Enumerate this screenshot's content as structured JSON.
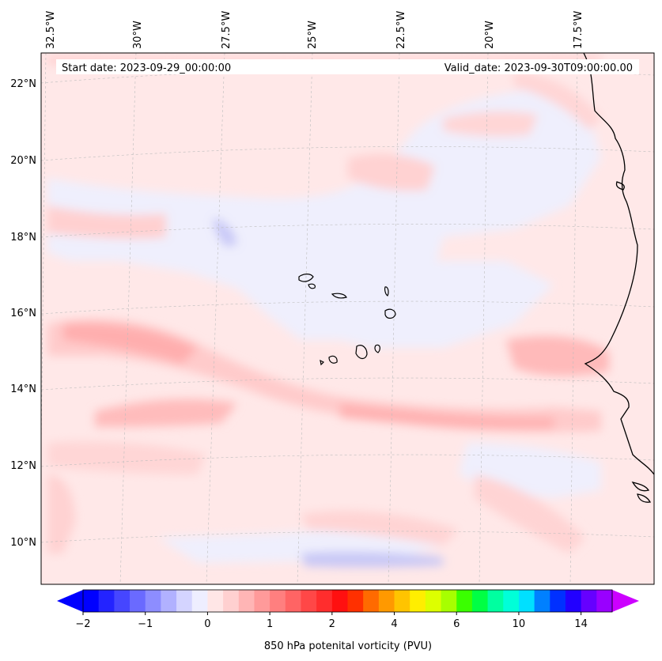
{
  "header": {
    "start_date": "Start date: 2023-09-29_00:00:00",
    "valid_date": "Valid_date: 2023-09-30T09:00:00.00"
  },
  "map": {
    "lon_labels": [
      "32.5°W",
      "30°W",
      "27.5°W",
      "25°W",
      "22.5°W",
      "20°W",
      "17.5°W"
    ],
    "lat_labels": [
      "22°N",
      "20°N",
      "18°N",
      "16°N",
      "14°N",
      "12°N",
      "10°N"
    ],
    "lon_range": [
      -33,
      -16
    ],
    "lat_range": [
      8.9,
      22.7
    ]
  },
  "colorbar": {
    "label": "850 hPa potenital vorticity (PVU)",
    "tick_labels": [
      "−2",
      "−1",
      "0",
      "1",
      "2",
      "4",
      "6",
      "10",
      "14"
    ],
    "colors": [
      "#0000ff",
      "#2323ff",
      "#4646ff",
      "#6a6aff",
      "#8d8dff",
      "#b1b1ff",
      "#d4d4ff",
      "#eeeeff",
      "#ffe6e6",
      "#ffd0d0",
      "#ffb5b5",
      "#ff9a9a",
      "#ff7f7f",
      "#ff6464",
      "#ff4747",
      "#ff2d2d",
      "#ff1010",
      "#ff3000",
      "#ff6a00",
      "#ff9900",
      "#ffc400",
      "#ffee00",
      "#ddff00",
      "#a7ff00",
      "#3aff00",
      "#00ff44",
      "#00ffa0",
      "#00ffd8",
      "#00e0ff",
      "#0080ff",
      "#0030ff",
      "#2200ff",
      "#6600ff",
      "#9900ff"
    ],
    "under_color": "#0000ff",
    "over_color": "#cc00ff"
  }
}
